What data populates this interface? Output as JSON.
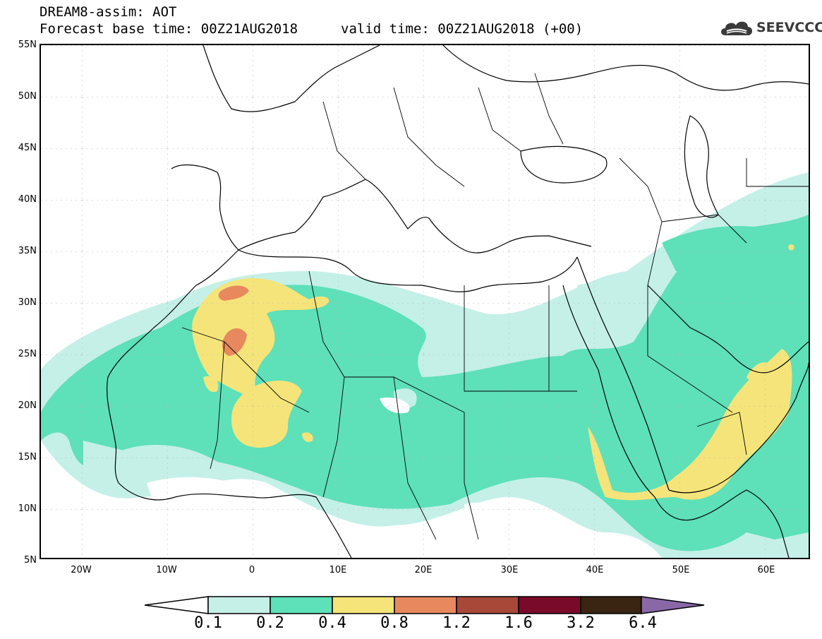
{
  "header": {
    "title": "DREAM8-assim: AOT",
    "forecast_base": "Forecast base time: 00Z21AUG2018",
    "valid_time": "valid time: 00Z21AUG2018 (+00)",
    "logo_text": "SEEVCCC",
    "logo_icon": "cloud-icon"
  },
  "map": {
    "variable": "AOT",
    "lon_range": [
      -25,
      65
    ],
    "lat_range": [
      5,
      55
    ],
    "lat_labels": [
      "55N",
      "50N",
      "45N",
      "40N",
      "35N",
      "30N",
      "25N",
      "20N",
      "15N",
      "10N",
      "5N"
    ],
    "lon_labels": [
      "20W",
      "10W",
      "0",
      "10E",
      "20E",
      "30E",
      "40E",
      "50E",
      "60E"
    ]
  },
  "legend": {
    "ticks": [
      "0.1",
      "0.2",
      "0.4",
      "0.8",
      "1.2",
      "1.6",
      "3.2",
      "6.4"
    ],
    "colors": [
      "#ffffff",
      "#c4f0e8",
      "#5ee0b8",
      "#f5e47a",
      "#e8885e",
      "#a84838",
      "#7a0a2a",
      "#3a2412",
      "#8a68a8"
    ]
  }
}
